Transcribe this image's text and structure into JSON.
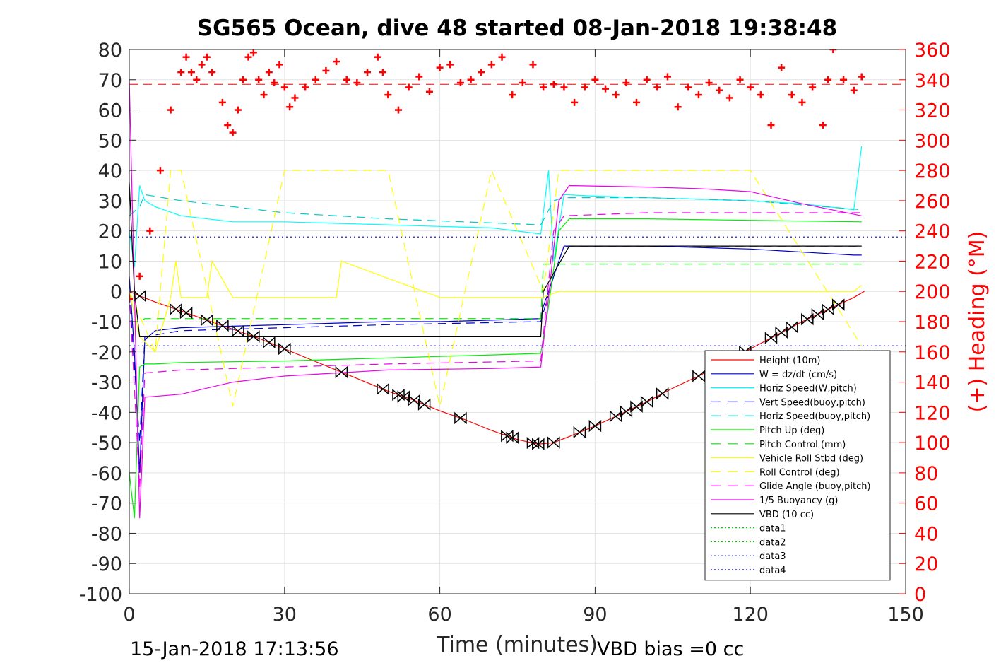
{
  "chart_data": {
    "type": "line",
    "title": "SG565 Ocean, dive 48 started 08-Jan-2018 19:38:48",
    "xlabel": "Time (minutes)",
    "ylabel_right": "(+) Heading (°M)",
    "xlim": [
      0,
      150
    ],
    "ylim": [
      -100,
      80
    ],
    "ylim_right": [
      0,
      360
    ],
    "x_ticks": [
      "0",
      "30",
      "60",
      "90",
      "120",
      "150"
    ],
    "y_ticks": [
      "80",
      "70",
      "60",
      "50",
      "40",
      "30",
      "20",
      "10",
      "0",
      "-10",
      "-20",
      "-30",
      "-40",
      "-50",
      "-60",
      "-70",
      "-80",
      "-90",
      "-100"
    ],
    "y_ticks_right": [
      "360",
      "340",
      "320",
      "300",
      "280",
      "260",
      "240",
      "220",
      "200",
      "180",
      "160",
      "140",
      "120",
      "100",
      "80",
      "60",
      "40",
      "20",
      "0"
    ],
    "grid": true,
    "legend_placement": "bottom-right",
    "series": [
      {
        "name": "Height (10m)",
        "color": "#ff0000",
        "style": "solid",
        "x": [
          0,
          2,
          5,
          10,
          15,
          20,
          25,
          30,
          35,
          40,
          45,
          50,
          55,
          60,
          65,
          70,
          75,
          79,
          82,
          85,
          90,
          95,
          100,
          105,
          110,
          115,
          120,
          125,
          130,
          135,
          140,
          142
        ],
        "y": [
          0,
          -1.5,
          -3.5,
          -6.5,
          -9.5,
          -12.5,
          -15.5,
          -19,
          -22.5,
          -26,
          -29.5,
          -33,
          -36,
          -39.5,
          -42.5,
          -46,
          -49,
          -50.5,
          -50,
          -48,
          -44.5,
          -40.5,
          -36.5,
          -32,
          -28,
          -23.5,
          -19,
          -14.5,
          -10,
          -6,
          -2,
          0
        ]
      },
      {
        "name": "W = dz/dt (cm/s)",
        "color": "#0000cc",
        "style": "solid",
        "x": [
          0,
          1,
          2,
          3,
          5,
          10,
          20,
          30,
          40,
          50,
          60,
          70,
          79.5,
          80,
          82,
          84,
          90,
          100,
          110,
          120,
          130,
          140,
          141.5
        ],
        "y": [
          5,
          -20,
          -60,
          -16,
          -13,
          -12,
          -11.5,
          -11,
          -10.5,
          -10,
          -10,
          -9.5,
          -9,
          -5,
          5,
          15,
          15,
          15,
          14.5,
          14,
          13,
          12,
          12
        ]
      },
      {
        "name": "Horiz Speed(W,pitch)",
        "color": "#00ffff",
        "style": "solid",
        "x": [
          0,
          1,
          2,
          3,
          5,
          10,
          20,
          30,
          40,
          50,
          60,
          70,
          79.5,
          81,
          82,
          84,
          90,
          100,
          110,
          120,
          130,
          140,
          141.5
        ],
        "y": [
          20,
          8,
          35,
          30,
          28,
          25,
          23,
          23,
          22.5,
          22,
          21.5,
          21,
          19,
          40,
          10,
          32,
          31.5,
          31,
          30.5,
          30,
          29,
          27,
          48
        ]
      },
      {
        "name": "Vert Speed(buoy,pitch)",
        "color": "#0000cc",
        "style": "dash",
        "x": [
          0,
          2,
          3,
          10,
          30,
          50,
          79.5,
          82,
          84,
          100,
          120,
          141.5
        ],
        "y": [
          0,
          -50,
          -15,
          -13,
          -12,
          -11,
          -10,
          5,
          15,
          15,
          15,
          15
        ]
      },
      {
        "name": "Horiz Speed(buoy,pitch)",
        "color": "#00cccc",
        "style": "dash",
        "x": [
          0,
          2,
          3,
          10,
          30,
          50,
          79.5,
          82,
          84,
          100,
          120,
          141.5
        ],
        "y": [
          25,
          28,
          32,
          30,
          26,
          24,
          22,
          30,
          31,
          31,
          30,
          27
        ]
      },
      {
        "name": "Pitch Up (deg)",
        "color": "#00ee00",
        "style": "solid",
        "x": [
          0,
          1,
          2,
          3,
          5,
          10,
          30,
          50,
          70,
          79.5,
          81,
          83,
          85,
          100,
          120,
          141.5
        ],
        "y": [
          -60,
          -75,
          -25,
          -24,
          -24,
          -23.5,
          -23,
          -22,
          -21,
          -20.5,
          -5,
          20,
          24,
          24,
          23.5,
          23
        ]
      },
      {
        "name": "Pitch Control (mm)",
        "color": "#00ee00",
        "style": "dash",
        "x": [
          0,
          2,
          3,
          30,
          60,
          79.5,
          80,
          83,
          100,
          141.5
        ],
        "y": [
          -10,
          -10,
          -9,
          -9,
          -9,
          -9,
          9,
          9,
          9,
          9
        ]
      },
      {
        "name": "Vehicle Roll Stbd (deg)",
        "color": "#ffff00",
        "style": "solid",
        "x": [
          0,
          2,
          5,
          8,
          9,
          10,
          15,
          16,
          20,
          25,
          30,
          40,
          41,
          60,
          80,
          83,
          90,
          100,
          110,
          120,
          130,
          140,
          141.5
        ],
        "y": [
          0,
          -15,
          -20,
          -2,
          10,
          -2,
          -2,
          10,
          -2,
          -2,
          -2,
          -2,
          10,
          -2,
          -2,
          0,
          0,
          0,
          0,
          0,
          0,
          0,
          2
        ]
      },
      {
        "name": "Roll Control (deg)",
        "color": "#ffff00",
        "style": "dash",
        "x": [
          0,
          5,
          8,
          10,
          20,
          30,
          50,
          60,
          70,
          80,
          83,
          100,
          120,
          141.5
        ],
        "y": [
          0,
          -20,
          40,
          40,
          -38,
          40,
          40,
          -38,
          40,
          0,
          40,
          40,
          40,
          -18
        ]
      },
      {
        "name": "Glide Angle (buoy,pitch)",
        "color": "#ee00ee",
        "style": "dash",
        "x": [
          0,
          2,
          3,
          10,
          30,
          50,
          79.5,
          82,
          84,
          100,
          120,
          141.5
        ],
        "y": [
          0,
          -65,
          -27,
          -26,
          -25,
          -24,
          -23,
          20,
          25,
          26,
          26,
          26
        ]
      },
      {
        "name": "1/5 Buoyancy (g)",
        "color": "#ee00ee",
        "style": "solid",
        "x": [
          0,
          1,
          2,
          3,
          10,
          20,
          30,
          50,
          70,
          79.5,
          81,
          83,
          85,
          100,
          110,
          120,
          130,
          141.5
        ],
        "y": [
          70,
          0,
          -75,
          -35,
          -34,
          -30,
          -28,
          -26,
          -25.5,
          -25,
          -2,
          30,
          35,
          34.5,
          34,
          33,
          29,
          25
        ]
      },
      {
        "name": "VBD (10 cc)",
        "color": "#000000",
        "style": "solid",
        "x": [
          0,
          1,
          2,
          3,
          79.5,
          80,
          85,
          141.5
        ],
        "y": [
          36,
          0,
          -15,
          -15,
          -15,
          0,
          15,
          15
        ]
      },
      {
        "name": "data1",
        "color": "#00cc00",
        "style": "dot",
        "x": [],
        "y": []
      },
      {
        "name": "data2",
        "color": "#00cc00",
        "style": "dot",
        "x": [],
        "y": []
      },
      {
        "name": "data3",
        "color": "#0000cc",
        "style": "dot",
        "x": [
          0,
          150
        ],
        "y": [
          18,
          18
        ]
      },
      {
        "name": "data4",
        "color": "#0000cc",
        "style": "dot",
        "x": [
          0,
          150
        ],
        "y": [
          -18,
          -18
        ]
      }
    ],
    "heading": {
      "color": "#ff0000",
      "marker": "+",
      "axis": "right",
      "x": [
        0,
        2,
        4,
        6,
        8,
        10,
        11,
        12,
        13,
        14,
        15,
        16,
        18,
        19,
        20,
        21,
        22,
        23,
        24,
        25,
        26,
        27,
        28,
        29,
        30,
        31,
        32,
        34,
        36,
        38,
        40,
        42,
        44,
        46,
        48,
        49,
        50,
        52,
        54,
        56,
        58,
        60,
        62,
        64,
        66,
        68,
        70,
        72,
        74,
        76,
        78,
        80,
        82,
        84,
        86,
        88,
        90,
        92,
        94,
        96,
        98,
        100,
        102,
        104,
        106,
        108,
        110,
        112,
        114,
        116,
        118,
        120,
        122,
        124,
        126,
        128,
        130,
        132,
        134,
        135,
        136,
        138,
        140,
        141.5
      ],
      "y": [
        195,
        210,
        240,
        280,
        320,
        345,
        355,
        345,
        340,
        350,
        355,
        345,
        325,
        310,
        305,
        320,
        340,
        355,
        358,
        340,
        330,
        345,
        338,
        350,
        335,
        322,
        328,
        335,
        340,
        346,
        352,
        340,
        338,
        345,
        355,
        345,
        330,
        320,
        335,
        342,
        332,
        348,
        350,
        338,
        340,
        345,
        350,
        355,
        330,
        338,
        350,
        335,
        337,
        335,
        325,
        335,
        340,
        334,
        330,
        338,
        325,
        340,
        335,
        342,
        322,
        335,
        330,
        338,
        333,
        328,
        340,
        335,
        330,
        310,
        348,
        330,
        325,
        335,
        310,
        340,
        360,
        340,
        333,
        342
      ]
    },
    "heading_mean": {
      "y": 337,
      "color": "#ff0000",
      "style": "dash"
    },
    "turn_markers": [
      2,
      9,
      11,
      15,
      18,
      21,
      24,
      27,
      30,
      41,
      49,
      52,
      53,
      55,
      57,
      64,
      73,
      74,
      78,
      79,
      82,
      87,
      90,
      94,
      96,
      98,
      100,
      103,
      110,
      119,
      124,
      126,
      128,
      131,
      133,
      135,
      137
    ]
  },
  "footer": {
    "timestamp": "15-Jan-2018 17:13:56",
    "vbd_bias": "VBD bias =0 cc"
  }
}
